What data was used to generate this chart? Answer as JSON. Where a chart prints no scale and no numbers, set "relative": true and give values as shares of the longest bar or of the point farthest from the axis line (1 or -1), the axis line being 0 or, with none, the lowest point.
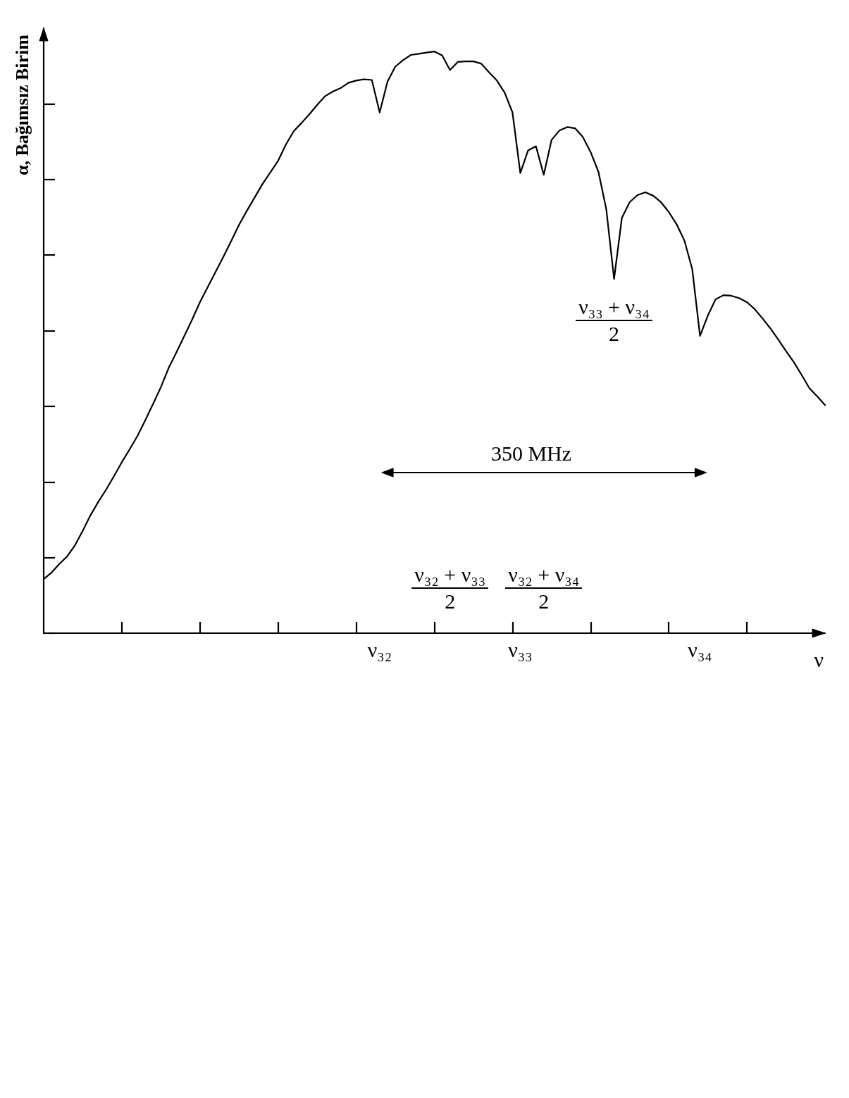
{
  "chart_data": {
    "type": "line",
    "xlabel": "ν",
    "ylabel": "α, Bağımsız Birim",
    "relative": true,
    "color": "#000000",
    "categories": [
      null,
      null,
      null,
      null,
      null,
      null,
      null,
      null,
      null,
      null,
      null,
      null,
      null,
      null,
      null,
      null,
      null,
      null,
      null,
      null,
      null,
      null,
      null,
      null,
      null,
      null,
      null,
      null,
      null,
      null,
      null,
      null,
      null,
      null,
      null,
      null,
      null,
      null,
      null,
      null,
      null,
      null,
      null,
      "ν₃₂",
      null,
      null,
      null,
      null,
      null,
      null,
      null,
      null,
      null,
      null,
      null,
      null,
      null,
      null,
      null,
      null,
      null,
      "ν₃₃",
      null,
      null,
      null,
      null,
      null,
      null,
      null,
      null,
      null,
      null,
      null,
      null,
      null,
      null,
      null,
      null,
      null,
      null,
      null,
      null,
      null,
      null,
      "ν₃₄",
      null,
      null,
      null,
      null,
      null,
      null,
      null,
      null,
      null,
      null,
      null,
      null,
      null,
      null,
      null,
      null
    ],
    "values": [
      0.093,
      0.104,
      0.119,
      0.132,
      0.151,
      0.176,
      0.203,
      0.226,
      0.247,
      0.27,
      0.294,
      0.316,
      0.339,
      0.366,
      0.394,
      0.423,
      0.456,
      0.483,
      0.511,
      0.539,
      0.569,
      0.595,
      0.621,
      0.647,
      0.674,
      0.702,
      0.726,
      0.749,
      0.772,
      0.792,
      0.812,
      0.84,
      0.863,
      0.877,
      0.892,
      0.908,
      0.923,
      0.931,
      0.937,
      0.946,
      0.95,
      0.952,
      0.951,
      0.895,
      0.948,
      0.974,
      0.985,
      0.994,
      0.996,
      0.998,
      1,
      0.993,
      0.968,
      0.982,
      0.983,
      0.983,
      0.979,
      0.964,
      0.95,
      0.929,
      0.895,
      0.791,
      0.83,
      0.837,
      0.788,
      0.848,
      0.864,
      0.87,
      0.868,
      0.853,
      0.827,
      0.793,
      0.729,
      0.609,
      0.714,
      0.741,
      0.753,
      0.758,
      0.752,
      0.741,
      0.724,
      0.703,
      0.675,
      0.626,
      0.511,
      0.546,
      0.574,
      0.581,
      0.58,
      0.576,
      0.569,
      0.557,
      0.541,
      0.524,
      0.505,
      0.485,
      0.466,
      0.444,
      0.421,
      0.407,
      0.392
    ],
    "annotations": [
      "ν₃₂ + ν₃₃\n2",
      "ν₃₂ + ν₃₄\n2",
      "ν₃₃ + ν₃₄\n2",
      "350 MHz"
    ]
  }
}
